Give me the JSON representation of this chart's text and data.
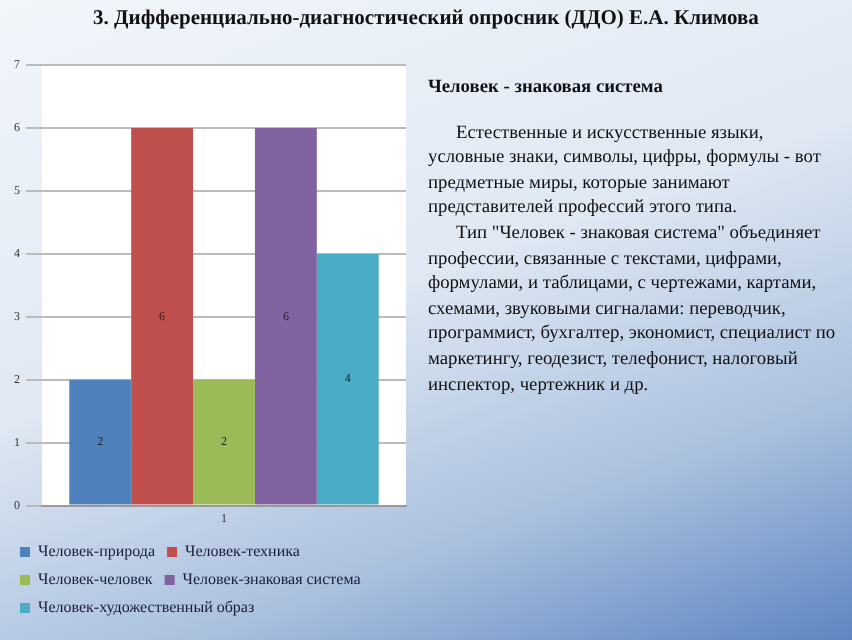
{
  "chart_data": {
    "type": "bar",
    "title": "3. Дифференциально-диагностический опросник (ДДО) Е.А. Климова",
    "categories": [
      "1"
    ],
    "series": [
      {
        "name": "Человек-природа",
        "color": "#4f81bd",
        "values": [
          2
        ]
      },
      {
        "name": "Человек-техника",
        "color": "#c0504d",
        "values": [
          6
        ]
      },
      {
        "name": "Человек-человек",
        "color": "#9bbb59",
        "values": [
          2
        ]
      },
      {
        "name": "Человек-знаковая система",
        "color": "#8064a2",
        "values": [
          6
        ]
      },
      {
        "name": "Человек-художественный образ",
        "color": "#4bacc6",
        "values": [
          4
        ]
      }
    ],
    "ylim": [
      0,
      7
    ],
    "yticks": [
      0,
      1,
      2,
      3,
      4,
      5,
      6,
      7
    ],
    "grid": "y",
    "data_labels": true,
    "legend": "bottom",
    "annotations": [
      "Человек - знаковая система",
      "Естественные и искусственные языки, условные знаки, символы, цифры, формулы - вот предметные миры, которые занимают представителей профессий этого типа.",
      "Тип \"Человек - знаковая система\" объединяет профессии, связанные с текстами, цифрами, формулами, и таблицами, с чертежами, картами, схемами, звуковыми сигналами: переводчик, программист, бухгалтер, экономист, специалист по маркетингу, геодезист, телефонист, налоговый инспектор, чертежник и др."
    ]
  }
}
